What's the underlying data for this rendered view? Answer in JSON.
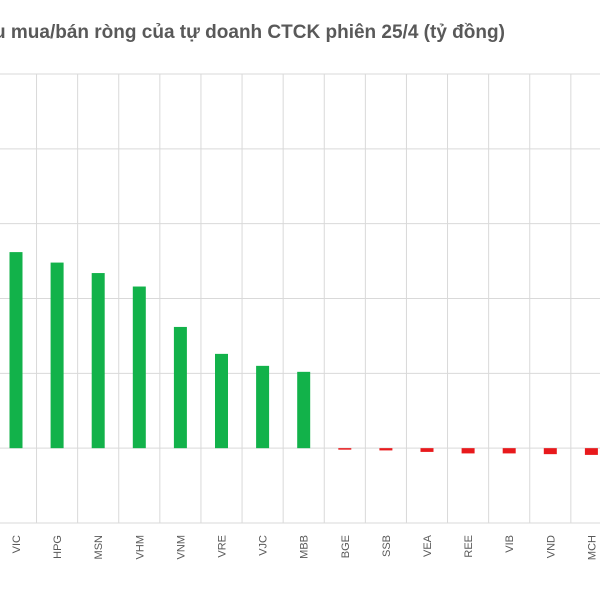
{
  "chart_data": {
    "type": "bar",
    "title": "u mua/bán ròng của tự doanh CTCK phiên 25/4 (tỷ đồng)",
    "categories": [
      "VIC",
      "HPG",
      "MSN",
      "VHM",
      "VNM",
      "VRE",
      "VJC",
      "MBB",
      "BGE",
      "SSB",
      "VEA",
      "REE",
      "VIB",
      "VND",
      "MCH"
    ],
    "values": [
      131,
      124,
      117,
      108,
      81,
      63,
      55,
      51,
      -1,
      -1.5,
      -2.5,
      -3.5,
      -3.5,
      -4,
      -4.5
    ],
    "ylim": [
      -50,
      250
    ],
    "gridlines": true,
    "colors": {
      "positive": "#12b24a",
      "negative": "#e8191c",
      "grid": "#d9d9d9",
      "title": "#595959",
      "tick": "#595959"
    }
  }
}
